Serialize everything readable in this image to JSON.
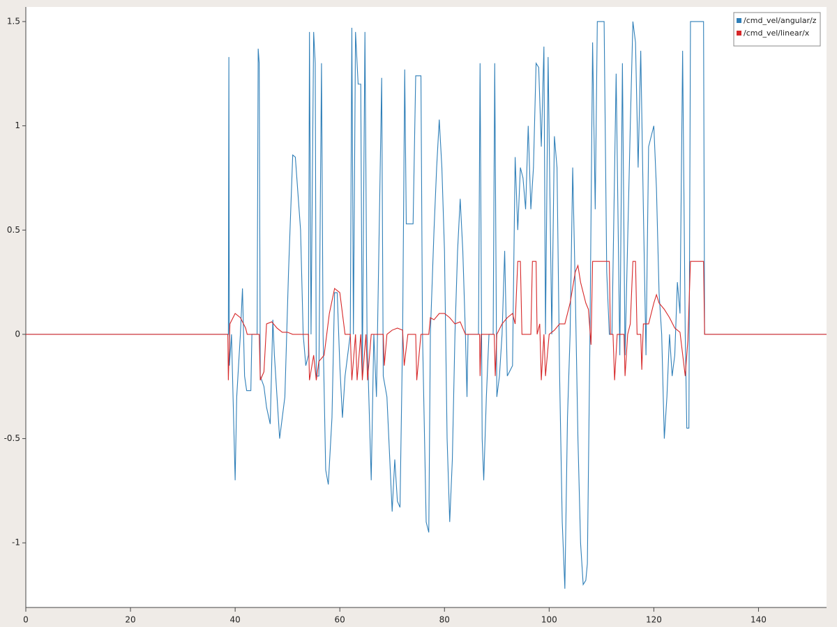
{
  "chart_data": {
    "type": "line",
    "xlim": [
      0,
      153
    ],
    "xticks": [
      0,
      20,
      40,
      60,
      80,
      100,
      120,
      140
    ],
    "ylim": [
      -1.31,
      1.57
    ],
    "yticks": [
      -1,
      -0.5,
      0,
      0.5,
      1,
      1.5
    ],
    "legend": "top-right",
    "grid": false,
    "series": [
      {
        "name": "/cmd_vel/angular/z",
        "color": "#2f7fb8",
        "x": [
          0,
          38.7,
          38.8,
          38.9,
          39.3,
          40.0,
          40.3,
          41.0,
          41.4,
          41.8,
          42.2,
          43.0,
          43.2,
          44.2,
          44.4,
          44.6,
          44.8,
          45.5,
          46.0,
          46.7,
          47.2,
          47.5,
          48.0,
          48.5,
          49.5,
          50.2,
          51.0,
          51.5,
          52.5,
          53.0,
          53.5,
          54.0,
          54.2,
          54.5,
          55.0,
          55.3,
          55.5,
          56.0,
          56.5,
          56.8,
          57.3,
          57.8,
          58.5,
          59.0,
          59.5,
          60.0,
          60.5,
          61.0,
          62.0,
          62.3,
          62.6,
          63.0,
          63.5,
          64.0,
          64.3,
          64.8,
          65.2,
          66.0,
          66.5,
          67.0,
          68.0,
          68.3,
          69.0,
          70.0,
          70.5,
          71.0,
          71.5,
          72.0,
          72.4,
          72.7,
          74.0,
          74.5,
          75.5,
          75.8,
          76.5,
          77.0,
          77.3,
          78.0,
          78.5,
          79.0,
          79.5,
          80.0,
          80.5,
          81.0,
          81.5,
          82.0,
          82.5,
          83.0,
          83.5,
          84.0,
          84.3,
          84.5,
          86.5,
          86.8,
          87.2,
          87.5,
          88.0,
          88.5,
          89.3,
          89.6,
          90.0,
          90.5,
          91.0,
          91.5,
          92.0,
          93.0,
          93.5,
          94.0,
          94.5,
          95.0,
          95.5,
          96.0,
          96.5,
          97.0,
          97.5,
          98.0,
          98.5,
          99.0,
          99.3,
          99.8,
          100.5,
          101.0,
          101.5,
          102.0,
          102.5,
          103.0,
          103.5,
          104.0,
          104.5,
          105.0,
          105.5,
          106.0,
          106.5,
          107.0,
          107.3,
          107.8,
          108.3,
          108.8,
          109.2,
          110.5,
          111.0,
          111.5,
          112.0,
          112.8,
          113.5,
          114.0,
          114.5,
          115.5,
          116.0,
          116.5,
          117.0,
          117.5,
          118.0,
          118.5,
          119.0,
          120.0,
          120.5,
          121.0,
          121.5,
          122.0,
          122.5,
          123.0,
          123.5,
          124.0,
          124.5,
          125.0,
          125.5,
          126.0,
          126.3,
          126.7,
          127.0,
          129.5,
          129.7,
          153
        ],
        "values": [
          0,
          0,
          1.33,
          -0.15,
          0.0,
          -0.7,
          -0.3,
          0.0,
          0.22,
          -0.2,
          -0.27,
          -0.27,
          0.0,
          0.0,
          1.37,
          1.3,
          -0.2,
          -0.25,
          -0.35,
          -0.43,
          0.07,
          -0.1,
          -0.3,
          -0.5,
          -0.3,
          0.3,
          0.86,
          0.85,
          0.5,
          0.0,
          -0.15,
          -0.1,
          1.45,
          0.0,
          1.45,
          1.3,
          -0.2,
          -0.2,
          1.3,
          0.0,
          -0.65,
          -0.72,
          -0.4,
          0.2,
          0.2,
          -0.15,
          -0.4,
          -0.2,
          0.0,
          1.47,
          0.0,
          1.45,
          1.2,
          1.2,
          -0.2,
          1.45,
          0.0,
          -0.7,
          0.0,
          -0.3,
          1.23,
          -0.2,
          -0.3,
          -0.85,
          -0.6,
          -0.8,
          -0.83,
          0.0,
          1.27,
          0.53,
          0.53,
          1.24,
          1.24,
          0.0,
          -0.9,
          -0.95,
          0.0,
          0.5,
          0.8,
          1.03,
          0.8,
          0.4,
          -0.5,
          -0.9,
          -0.6,
          0.0,
          0.4,
          0.65,
          0.4,
          0.0,
          -0.3,
          0.0,
          0.0,
          1.3,
          -0.5,
          -0.7,
          -0.3,
          0.0,
          0.0,
          1.3,
          -0.3,
          -0.2,
          0.0,
          0.4,
          -0.2,
          -0.15,
          0.85,
          0.5,
          0.8,
          0.75,
          0.6,
          1.0,
          0.6,
          0.8,
          1.3,
          1.28,
          0.9,
          1.38,
          0.0,
          1.33,
          0.0,
          0.95,
          0.8,
          -0.2,
          -0.9,
          -1.22,
          -0.4,
          0.0,
          0.8,
          0.2,
          -0.5,
          -1.0,
          -1.2,
          -1.18,
          -1.1,
          0.0,
          1.4,
          0.6,
          1.5,
          1.5,
          0.3,
          0.0,
          0.0,
          1.25,
          -0.1,
          1.3,
          -0.1,
          1.0,
          1.5,
          1.4,
          0.8,
          1.36,
          0.6,
          -0.1,
          0.9,
          1.0,
          0.7,
          0.2,
          0.0,
          -0.5,
          -0.3,
          0.0,
          -0.2,
          -0.1,
          0.25,
          0.1,
          1.36,
          0.0,
          -0.45,
          -0.45,
          1.5,
          1.5,
          0.0,
          0.0
        ]
      },
      {
        "name": "/cmd_vel/linear/x",
        "color": "#d62728",
        "x": [
          0,
          38.6,
          38.7,
          39.0,
          40.0,
          41.0,
          42.0,
          42.3,
          44.6,
          44.8,
          45.5,
          46.0,
          47.0,
          48.0,
          49.0,
          50.0,
          51.0,
          54.0,
          54.2,
          55.0,
          55.5,
          56.0,
          57.0,
          57.5,
          58.0,
          59.0,
          60.0,
          60.5,
          61.0,
          62.0,
          62.3,
          63.0,
          63.3,
          64.0,
          64.3,
          65.0,
          65.3,
          66.0,
          68.3,
          68.5,
          69.0,
          70.0,
          71.0,
          72.0,
          72.3,
          73.0,
          74.5,
          74.7,
          75.5,
          77.0,
          77.3,
          78.0,
          79.0,
          80.0,
          81.0,
          82.0,
          83.0,
          83.5,
          84.0,
          86.7,
          86.8,
          87.0,
          89.5,
          89.7,
          90.0,
          91.0,
          92.0,
          93.0,
          93.5,
          94.0,
          94.5,
          94.8,
          96.5,
          96.8,
          97.5,
          97.7,
          98.2,
          98.5,
          99.0,
          99.3,
          100.0,
          101.0,
          102.0,
          103.0,
          104.0,
          105.0,
          105.5,
          106.0,
          107.0,
          107.5,
          108.0,
          108.3,
          111.5,
          111.7,
          112.2,
          112.5,
          113.0,
          114.3,
          114.5,
          115.0,
          115.5,
          116.0,
          116.5,
          116.8,
          117.5,
          117.7,
          118.0,
          119.0,
          119.5,
          120.0,
          120.5,
          121.0,
          122.0,
          123.0,
          124.0,
          125.0,
          126.0,
          126.5,
          127.0,
          129.5,
          129.7,
          153
        ],
        "values": [
          0,
          0,
          -0.22,
          0.05,
          0.1,
          0.08,
          0.03,
          0,
          0,
          -0.22,
          -0.18,
          0.05,
          0.06,
          0.03,
          0.01,
          0.01,
          0.0,
          0.0,
          -0.22,
          -0.1,
          -0.22,
          -0.13,
          -0.1,
          0.0,
          0.1,
          0.22,
          0.2,
          0.1,
          0.0,
          0.0,
          -0.22,
          0.0,
          -0.22,
          0.0,
          -0.22,
          0.0,
          -0.22,
          0.0,
          0.0,
          -0.15,
          0.0,
          0.02,
          0.03,
          0.02,
          -0.15,
          0.0,
          0.0,
          -0.22,
          0.0,
          0.0,
          0.08,
          0.07,
          0.1,
          0.1,
          0.08,
          0.05,
          0.06,
          0.03,
          0.0,
          0.0,
          -0.2,
          0.0,
          0.0,
          -0.2,
          0.0,
          0.05,
          0.08,
          0.1,
          0.05,
          0.35,
          0.35,
          0.0,
          0.0,
          0.35,
          0.35,
          0.0,
          0.05,
          -0.22,
          0.0,
          -0.2,
          0.0,
          0.02,
          0.05,
          0.05,
          0.15,
          0.3,
          0.33,
          0.25,
          0.15,
          0.12,
          -0.05,
          0.35,
          0.35,
          0.0,
          0.0,
          -0.22,
          0.0,
          0.0,
          -0.2,
          0.0,
          0.05,
          0.35,
          0.35,
          0.0,
          0.0,
          -0.17,
          0.05,
          0.05,
          0.1,
          0.15,
          0.19,
          0.15,
          0.12,
          0.08,
          0.03,
          0.01,
          -0.2,
          -0.03,
          0.35,
          0.35,
          0.0,
          0.0
        ]
      }
    ]
  }
}
